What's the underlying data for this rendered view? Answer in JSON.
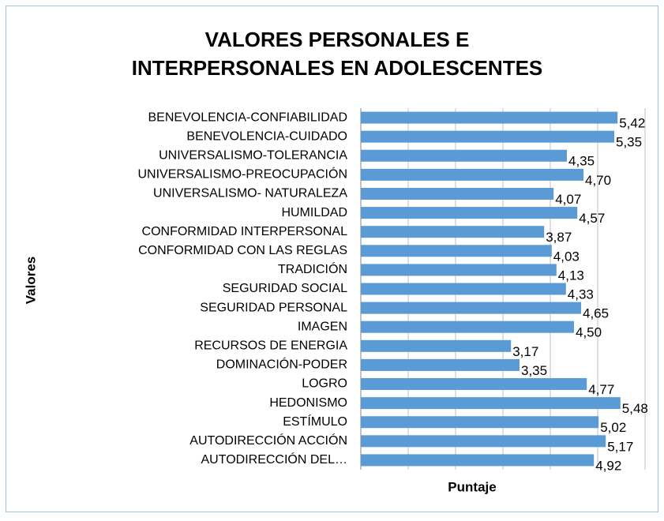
{
  "chart_data": {
    "type": "hbar",
    "title": [
      "VALORES PERSONALES E",
      "INTERPERSONALES EN ADOLESCENTES"
    ],
    "ylabel": "Valores",
    "xlabel": "Puntaje",
    "categories": [
      "BENEVOLENCIA-CONFIABILIDAD",
      "BENEVOLENCIA-CUIDADO",
      "UNIVERSALISMO-TOLERANCIA",
      "UNIVERSALISMO-PREOCUPACIÓN",
      "UNIVERSALISMO- NATURALEZA",
      "HUMILDAD",
      "CONFORMIDAD INTERPERSONAL",
      "CONFORMIDAD CON LAS REGLAS",
      "TRADICIÓN",
      "SEGURIDAD SOCIAL",
      "SEGURIDAD PERSONAL",
      "IMAGEN",
      "RECURSOS DE ENERGIA",
      "DOMINACIÓN-PODER",
      "LOGRO",
      "HEDONISMO",
      "ESTÍMULO",
      "AUTODIRECCIÓN ACCIÓN",
      "AUTODIRECCIÓN DEL…"
    ],
    "values": [
      5.42,
      5.35,
      4.35,
      4.7,
      4.07,
      4.57,
      3.87,
      4.03,
      4.13,
      4.33,
      4.65,
      4.5,
      3.17,
      3.35,
      4.77,
      5.48,
      5.02,
      5.17,
      4.92
    ],
    "value_labels": [
      "5,42",
      "5,35",
      "4,35",
      "4,70",
      "4,07",
      "4,57",
      "3,87",
      "4,03",
      "4,13",
      "4,33",
      "4,65",
      "4,50",
      "3,17",
      "3,35",
      "4,77",
      "5,48",
      "5,02",
      "5,17",
      "4,92"
    ],
    "color": "#5b9bd5",
    "xlim": [
      0,
      6
    ],
    "xticks": [
      0,
      1,
      2,
      3,
      4,
      5,
      6
    ],
    "grid": true
  }
}
